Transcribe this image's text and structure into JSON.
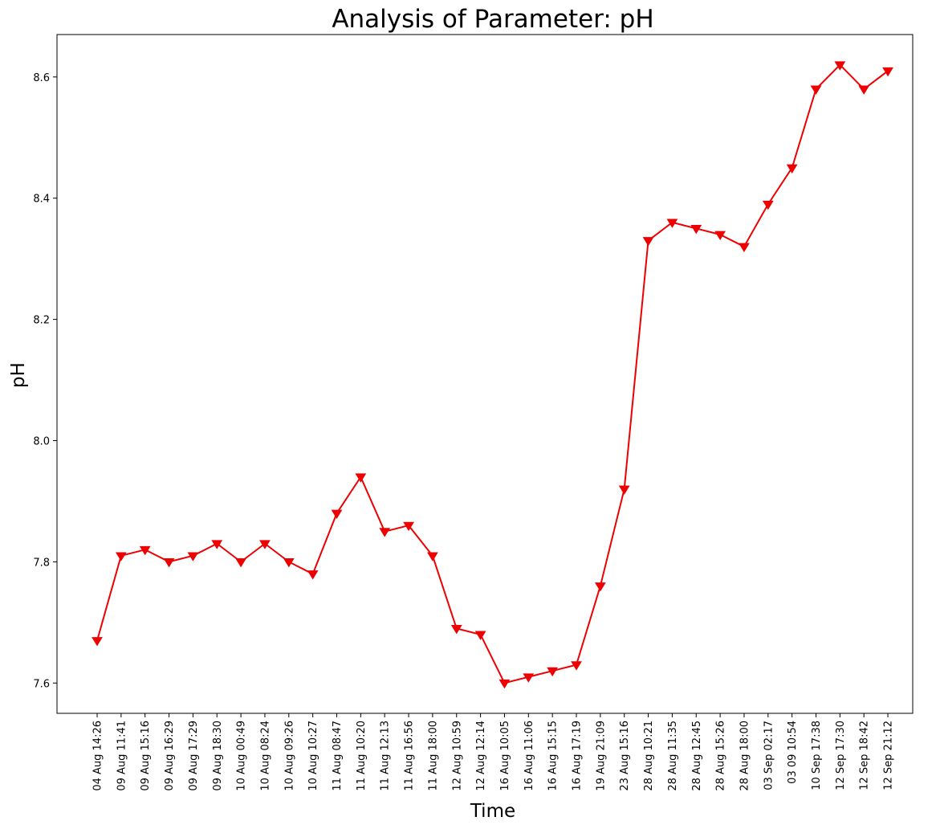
{
  "chart_data": {
    "type": "line",
    "title": "Analysis of Parameter: pH",
    "xlabel": "Time",
    "ylabel": "pH",
    "ylim": [
      7.55,
      8.67
    ],
    "yticks": [
      "7.6",
      "7.8",
      "8.0",
      "8.2",
      "8.4",
      "8.6"
    ],
    "grid": false,
    "legend": "none",
    "line_color": "#ee0000",
    "marker": "triangle-down",
    "categories": [
      "04 Aug 14:26",
      "09 Aug 11:41",
      "09 Aug 15:16",
      "09 Aug 16:29",
      "09 Aug 17:29",
      "09 Aug 18:30",
      "10 Aug 00:49",
      "10 Aug 08:24",
      "10 Aug 09:26",
      "10 Aug 10:27",
      "11 Aug 08:47",
      "11 Aug 10:20",
      "11 Aug 12:13",
      "11 Aug 16:56",
      "11 Aug 18:00",
      "12 Aug 10:59",
      "12 Aug 12:14",
      "16 Aug 10:05",
      "16 Aug 11:06",
      "16 Aug 15:15",
      "16 Aug 17:19",
      "19 Aug 21:09",
      "23 Aug 15:16",
      "28 Aug 10:21",
      "28 Aug 11:35",
      "28 Aug 12:45",
      "28 Aug 15:26",
      "28 Aug 18:00",
      "03 Sep 02:17",
      "03 09 10:54",
      "10 Sep 17:38",
      "12 Sep 17:30",
      "12 Sep 18:42",
      "12 Sep 21:12"
    ],
    "values": [
      7.67,
      7.81,
      7.82,
      7.8,
      7.81,
      7.83,
      7.8,
      7.83,
      7.8,
      7.78,
      7.88,
      7.94,
      7.85,
      7.86,
      7.81,
      7.69,
      7.68,
      7.6,
      7.61,
      7.62,
      7.63,
      7.76,
      7.92,
      8.33,
      8.36,
      8.35,
      8.34,
      8.32,
      8.39,
      8.45,
      8.58,
      8.62,
      8.58,
      8.61
    ]
  }
}
